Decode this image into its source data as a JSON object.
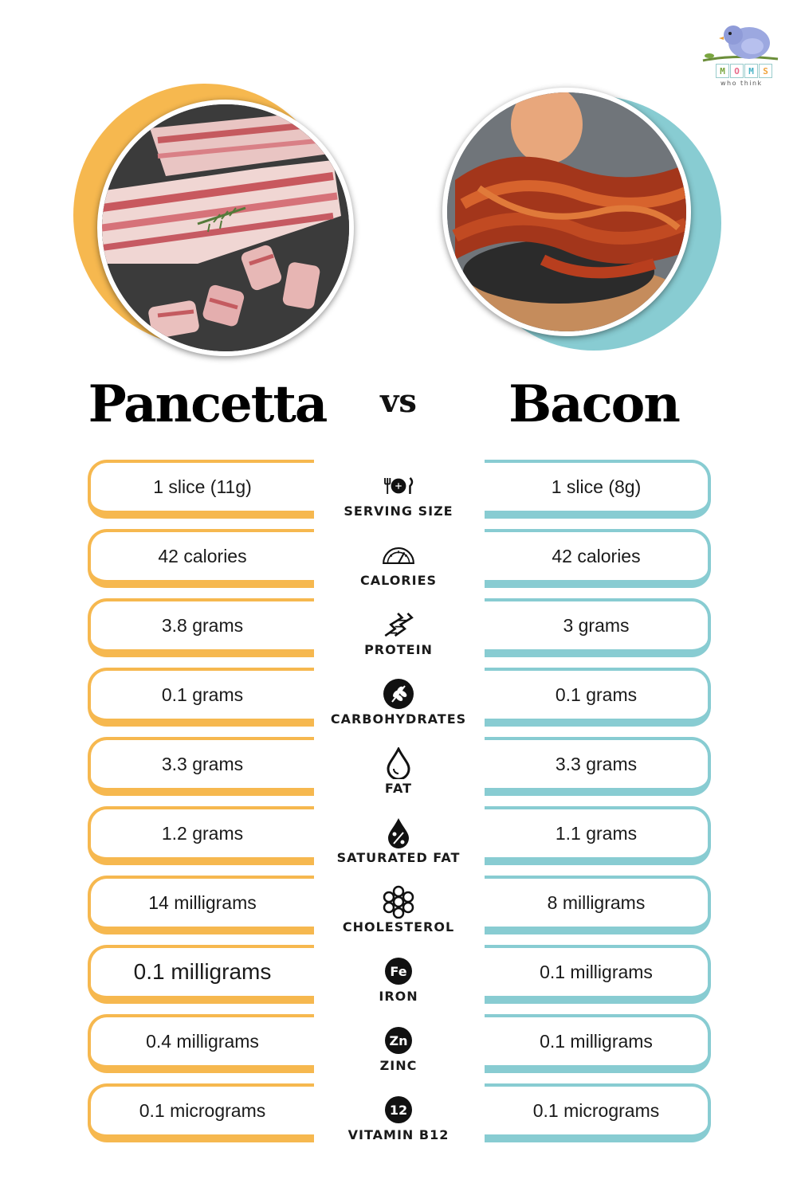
{
  "logo": {
    "letters": [
      "M",
      "O",
      "M",
      "S"
    ],
    "tagline": "who think"
  },
  "left": {
    "title": "Pancetta",
    "accent": "#f6b84f"
  },
  "right": {
    "title": "Bacon",
    "accent": "#88ccd2"
  },
  "vs": "vs",
  "rows": [
    {
      "label": "SERVING SIZE",
      "icon": "utensils-plate-icon",
      "left": "1 slice (11g)",
      "right": "1 slice (8g)"
    },
    {
      "label": "CALORIES",
      "icon": "gauge-icon",
      "left": "42 calories",
      "right": "42 calories"
    },
    {
      "label": "PROTEIN",
      "icon": "dna-icon",
      "left": "3.8 grams",
      "right": "3 grams"
    },
    {
      "label": "CARBOHYDRATES",
      "icon": "wheat-icon",
      "left": "0.1 grams",
      "right": "0.1 grams"
    },
    {
      "label": "FAT",
      "icon": "drop-icon",
      "left": "3.3 grams",
      "right": "3.3 grams"
    },
    {
      "label": "SATURATED FAT",
      "icon": "percent-drop-icon",
      "left": "1.2 grams",
      "right": "1.1 grams"
    },
    {
      "label": "CHOLESTEROL",
      "icon": "molecule-icon",
      "left": "14 milligrams",
      "right": "8 milligrams"
    },
    {
      "label": "IRON",
      "icon": "iron-badge-icon",
      "badge": "Fe",
      "left": "0.1 milligrams",
      "right": "0.1 milligrams"
    },
    {
      "label": "ZINC",
      "icon": "zinc-badge-icon",
      "badge": "Zn",
      "left": "0.4 milligrams",
      "right": "0.1 milligrams"
    },
    {
      "label": "VITAMIN B12",
      "icon": "b12-badge-icon",
      "badge": "12",
      "left": "0.1 micrograms",
      "right": "0.1 micrograms"
    }
  ]
}
